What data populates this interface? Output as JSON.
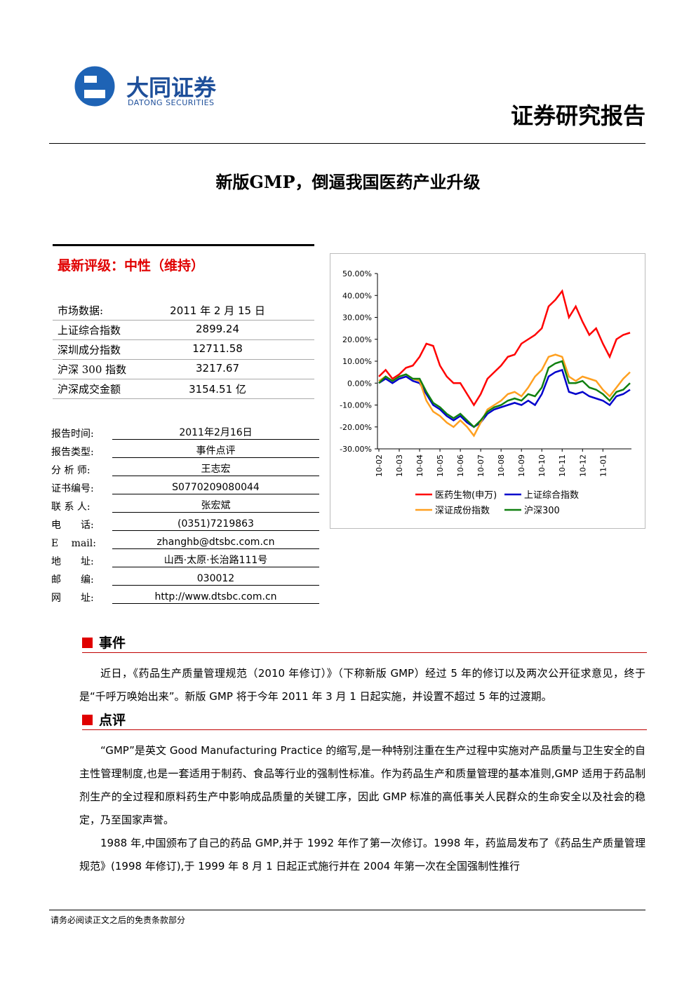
{
  "header": {
    "logo_cn": "大同证券",
    "logo_en": "DATONG SECURITIES",
    "report_type": "证券研究报告"
  },
  "title": "新版GMP，倒逼我国医药产业升级",
  "rating": "最新评级：中性（维持）",
  "market": [
    [
      "市场数据:",
      "2011 年 2 月 15 日"
    ],
    [
      "上证综合指数",
      "2899.24"
    ],
    [
      "深圳成分指数",
      "12711.58"
    ],
    [
      "沪深 300 指数",
      "3217.67"
    ],
    [
      "沪深成交金额",
      "3154.51 亿"
    ]
  ],
  "info": [
    [
      "报告时间:",
      "2011年2月16日"
    ],
    [
      "报告类型:",
      "事件点评"
    ],
    [
      "分 析 师:",
      "王志宏"
    ],
    [
      "证书编号:",
      "S0770209080044"
    ],
    [
      "联 系 人:",
      "张宏斌"
    ],
    [
      "电　　话:",
      "(0351)7219863"
    ],
    [
      "E　 mail:",
      "zhanghb@dtsbc.com.cn"
    ],
    [
      "地　　址:",
      "山西·太原·长治路111号"
    ],
    [
      "邮　　编:",
      "030012"
    ],
    [
      "网　　址:",
      "http://www.dtsbc.com.cn"
    ]
  ],
  "sections": [
    {
      "heading": "事件",
      "paragraphs": [
        "近日，《药品生产质量管理规范（2010 年修订）》（下称新版 GMP）经过 5 年的修订以及两次公开征求意见，终于是“千呼万唤始出来”。新版 GMP 将于今年 2011 年 3 月 1 日起实施，并设置不超过 5 年的过渡期。"
      ]
    },
    {
      "heading": "点评",
      "paragraphs": [
        "“GMP”是英文 Good Manufacturing Practice 的缩写,是一种特别注重在生产过程中实施对产品质量与卫生安全的自主性管理制度,也是一套适用于制药、食品等行业的强制性标准。作为药品生产和质量管理的基本准则,GMP 适用于药品制剂生产的全过程和原料药生产中影响成品质量的关键工序，因此 GMP 标准的高低事关人民群众的生命安全以及社会的稳定，乃至国家声誉。",
        "1988 年,中国颁布了自己的药品 GMP,并于 1992 年作了第一次修订。1998 年，药监局发布了《药品生产质量管理规范》(1998 年修订),于 1999 年 8 月 1 日起正式施行并在 2004 年第一次在全国强制性推行"
      ]
    }
  ],
  "footer": "请务必阅读正文之后的免责条款部分",
  "chart_data": {
    "type": "line",
    "grid": false,
    "categories": [
      "10-02",
      null,
      null,
      "10-03",
      null,
      null,
      "10-04",
      null,
      null,
      "10-05",
      null,
      null,
      "10-06",
      null,
      null,
      "10-07",
      null,
      null,
      "10-08",
      null,
      null,
      "10-09",
      null,
      null,
      "10-10",
      null,
      null,
      "10-11",
      null,
      null,
      "10-12",
      null,
      null,
      "11-01",
      null,
      null,
      null,
      null
    ],
    "ylim": [
      -30,
      50
    ],
    "yticks": [
      {
        "value": -30,
        "label": "-30.00%"
      },
      {
        "value": -20,
        "label": "-20.00%"
      },
      {
        "value": -10,
        "label": "-10.00%"
      },
      {
        "value": 0,
        "label": "0.00%"
      },
      {
        "value": 10,
        "label": "10.00%"
      },
      {
        "value": 20,
        "label": "20.00%"
      },
      {
        "value": 30,
        "label": "30.00%"
      },
      {
        "value": 40,
        "label": "40.00%"
      },
      {
        "value": 50,
        "label": "50.00%"
      }
    ],
    "series": [
      {
        "name": "医药生物(申万)",
        "color": "#ff0000",
        "values": [
          3,
          6,
          2,
          4,
          7,
          8,
          12,
          18,
          17,
          8,
          3,
          0,
          0,
          -5,
          -10,
          -5,
          2,
          5,
          8,
          12,
          13,
          18,
          20,
          22,
          25,
          35,
          38,
          42,
          30,
          35,
          28,
          22,
          25,
          18,
          12,
          20,
          22,
          23
        ]
      },
      {
        "name": "上证综合指数",
        "color": "#0000cc",
        "values": [
          0,
          2,
          0,
          2,
          3,
          1,
          0,
          -5,
          -10,
          -12,
          -15,
          -17,
          -15,
          -18,
          -20,
          -18,
          -14,
          -12,
          -11,
          -10,
          -9,
          -10,
          -8,
          -10,
          -5,
          3,
          5,
          6,
          -4,
          -5,
          -4,
          -6,
          -7,
          -8,
          -10,
          -6,
          -5,
          -3
        ]
      },
      {
        "name": "深证成份指数",
        "color": "#ffa020",
        "values": [
          1,
          3,
          1,
          3,
          4,
          2,
          1,
          -8,
          -13,
          -15,
          -18,
          -20,
          -17,
          -20,
          -24,
          -18,
          -12,
          -10,
          -8,
          -5,
          -4,
          -6,
          -2,
          3,
          6,
          12,
          13,
          12,
          3,
          1,
          3,
          2,
          1,
          -3,
          -6,
          -2,
          2,
          5
        ]
      },
      {
        "name": "沪深300",
        "color": "#108010",
        "values": [
          0,
          3,
          1,
          3,
          4,
          2,
          2,
          -4,
          -9,
          -11,
          -14,
          -16,
          -14,
          -17,
          -20,
          -17,
          -13,
          -11,
          -10,
          -8,
          -7,
          -8,
          -5,
          -6,
          -2,
          7,
          9,
          10,
          0,
          0,
          1,
          -2,
          -3,
          -5,
          -8,
          -4,
          -3,
          0
        ]
      }
    ]
  }
}
